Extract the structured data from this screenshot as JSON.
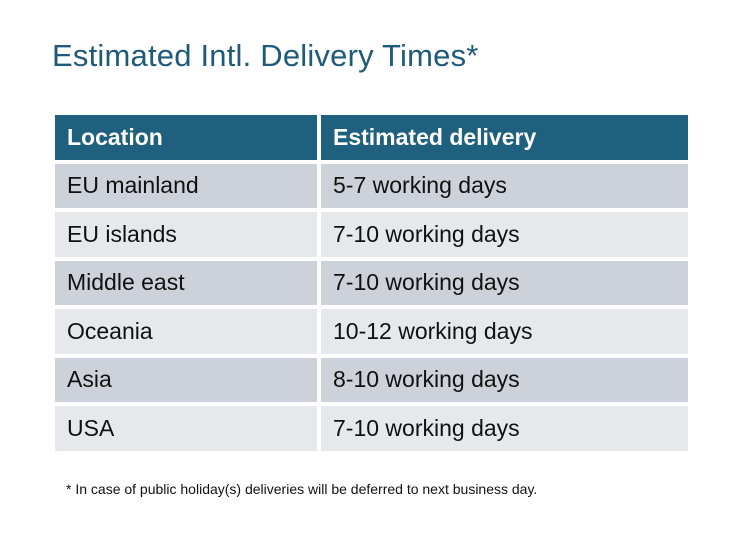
{
  "title": "Estimated Intl. Delivery Times*",
  "table": {
    "headers": [
      "Location",
      "Estimated delivery"
    ],
    "rows": [
      [
        "EU mainland",
        "5-7 working days"
      ],
      [
        "EU islands",
        "7-10 working days"
      ],
      [
        "Middle east",
        "7-10 working days"
      ],
      [
        "Oceania",
        "10-12 working days"
      ],
      [
        "Asia",
        "8-10 working days"
      ],
      [
        "USA",
        "7-10 working days"
      ]
    ]
  },
  "footnote": "* In case of public holiday(s) deliveries will be deferred to next business day.",
  "colors": {
    "title": "#1f5a7a",
    "header_bg": "#20607f",
    "row_dark": "#cdd1d9",
    "row_light": "#e6e8eb"
  }
}
